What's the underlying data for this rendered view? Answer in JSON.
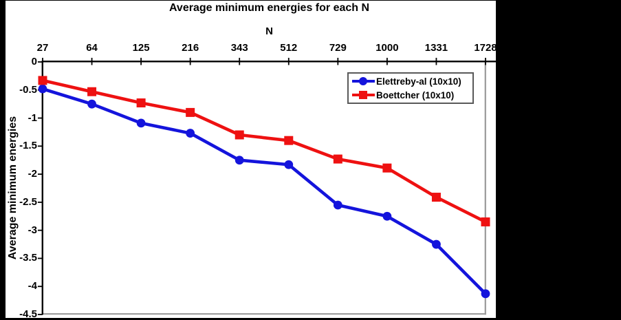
{
  "chart_data": {
    "type": "line",
    "title": "Average minimum energies for each N",
    "xlabel": "N",
    "ylabel": "Average minimum energies",
    "categories": [
      "27",
      "64",
      "125",
      "216",
      "343",
      "512",
      "729",
      "1000",
      "1331",
      "1728"
    ],
    "series": [
      {
        "name": "Elettreby-al (10x10)",
        "color": "#1414DC",
        "marker": "circle",
        "values": [
          -0.48,
          -0.75,
          -1.09,
          -1.27,
          -1.75,
          -1.83,
          -2.55,
          -2.75,
          -3.25,
          -4.13
        ]
      },
      {
        "name": "Boettcher (10x10)",
        "color": "#EE1111",
        "marker": "square",
        "values": [
          -0.33,
          -0.53,
          -0.73,
          -0.9,
          -1.3,
          -1.4,
          -1.73,
          -1.89,
          -2.41,
          -2.85
        ]
      }
    ],
    "ylim": [
      -4.5,
      0
    ],
    "ytick_step": 0.5,
    "ytick_labels": [
      "0",
      "-0.5",
      "-1",
      "-1.5",
      "-2",
      "-2.5",
      "-3",
      "-3.5",
      "-4",
      "-4.5"
    ],
    "x_axis_position": "top",
    "legend_position": "upper-right",
    "grid": false,
    "colors": {
      "axis_black": "#000000",
      "plot_border_gray": "#9A9A9A",
      "panel_background": "#FFFFFF",
      "matte_background": "#000000",
      "text": "#000000"
    }
  }
}
